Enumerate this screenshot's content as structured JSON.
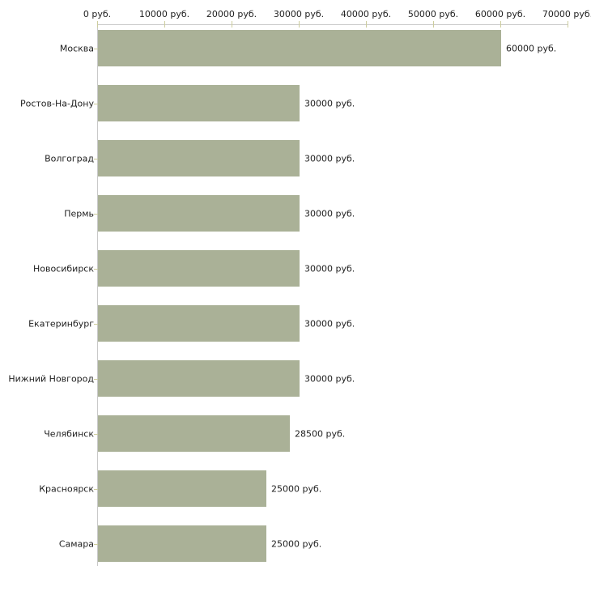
{
  "chart_data": {
    "type": "bar",
    "orientation": "horizontal",
    "title": "",
    "xlabel": "",
    "ylabel": "",
    "categories": [
      "Москва",
      "Ростов-На-Дону",
      "Волгоград",
      "Пермь",
      "Новосибирск",
      "Екатеринбург",
      "Нижний Новгород",
      "Челябинск",
      "Красноярск",
      "Самара"
    ],
    "values": [
      60000,
      30000,
      30000,
      30000,
      30000,
      30000,
      30000,
      28500,
      25000,
      25000
    ],
    "value_labels": [
      "60000 руб.",
      "30000 руб.",
      "30000 руб.",
      "30000 руб.",
      "30000 руб.",
      "30000 руб.",
      "30000 руб.",
      "28500 руб.",
      "25000 руб.",
      "25000 руб."
    ],
    "unit": "руб.",
    "xlim": [
      0,
      70000
    ],
    "x_ticks": [
      0,
      10000,
      20000,
      30000,
      40000,
      50000,
      60000,
      70000
    ],
    "x_tick_labels": [
      "0 руб.",
      "10000 руб.",
      "20000 руб.",
      "30000 руб.",
      "40000 руб.",
      "50000 руб.",
      "60000 руб.",
      "70000 руб."
    ],
    "grid": false,
    "legend": false,
    "axis_labels_position": "top",
    "colors": {
      "bar": "#aab197",
      "axis_line": "#c8c8c8",
      "tick_mark": "#cdcd9d",
      "text": "#1f1f1f",
      "background": "#ffffff"
    }
  }
}
